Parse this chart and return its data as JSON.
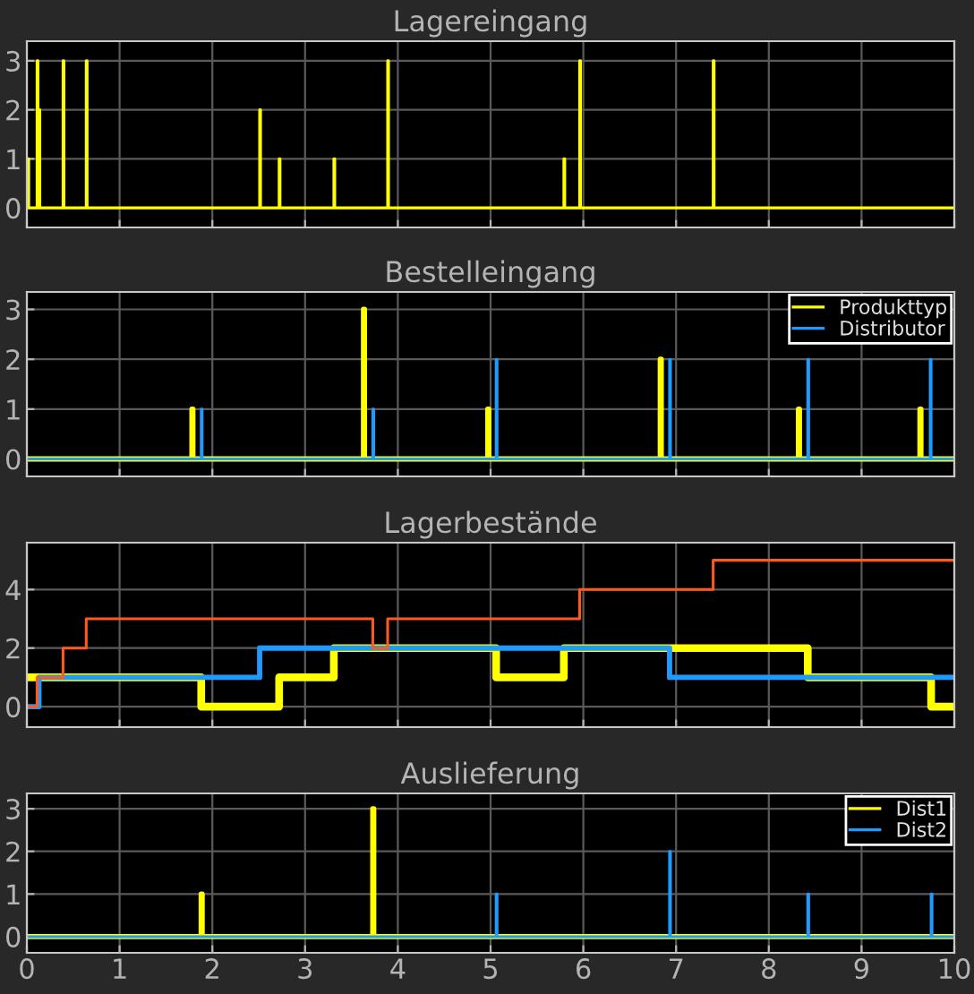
{
  "chart_data": [
    {
      "type": "step",
      "title": "Lagereingang",
      "xlim": [
        0,
        10
      ],
      "xticks": [
        0,
        1,
        2,
        3,
        4,
        5,
        6,
        7,
        8,
        9,
        10
      ],
      "ylim": [
        -0.4,
        3.4
      ],
      "yticks": [
        0,
        1,
        2,
        3
      ],
      "grid": true,
      "tick_labels": "y",
      "legend": false,
      "series": [
        {
          "color": "#ffff00",
          "x": [
            0,
            0.02,
            0.11,
            0.12,
            0.13,
            0.14,
            0.39,
            0.4,
            0.64,
            0.65,
            2.51,
            2.52,
            2.72,
            2.73,
            3.31,
            3.32,
            3.89,
            3.9,
            5.79,
            5.8,
            5.96,
            5.97,
            7.4,
            7.41,
            10
          ],
          "values": [
            1,
            0,
            3,
            0,
            2,
            0,
            3,
            0,
            3,
            0,
            2,
            0,
            1,
            0,
            1,
            0,
            3,
            0,
            1,
            0,
            3,
            0,
            3,
            0,
            0
          ]
        }
      ]
    },
    {
      "type": "step",
      "title": "Bestelleingang",
      "xlim": [
        0,
        10
      ],
      "xticks": [
        0,
        1,
        2,
        3,
        4,
        5,
        6,
        7,
        8,
        9,
        10
      ],
      "ylim": [
        -0.35,
        3.35
      ],
      "yticks": [
        0,
        1,
        2,
        3
      ],
      "grid": true,
      "tick_labels": "y",
      "legend": "top right",
      "series": [
        {
          "name": "Produkttyp",
          "color": "#ffff00",
          "x": [
            0,
            1.78,
            1.79,
            3.63,
            3.64,
            4.97,
            4.98,
            6.83,
            6.84,
            8.32,
            8.33,
            9.63,
            9.64,
            10
          ],
          "values": [
            0,
            1,
            0,
            3,
            0,
            1,
            0,
            2,
            0,
            1,
            0,
            1,
            0,
            0
          ]
        },
        {
          "name": "Distributor",
          "color": "#1e9bff",
          "x": [
            0,
            1.88,
            1.89,
            3.73,
            3.74,
            5.06,
            5.07,
            6.93,
            6.94,
            8.42,
            8.43,
            9.74,
            9.75,
            10
          ],
          "values": [
            0,
            1,
            0,
            1,
            0,
            2,
            0,
            2,
            0,
            2,
            0,
            2,
            0,
            0
          ]
        }
      ]
    },
    {
      "type": "step",
      "title": "Lagerbestände",
      "xlim": [
        0,
        10
      ],
      "xticks": [
        0,
        1,
        2,
        3,
        4,
        5,
        6,
        7,
        8,
        9,
        10
      ],
      "ylim": [
        -0.7,
        5.6
      ],
      "yticks": [
        0,
        2,
        4
      ],
      "grid": true,
      "tick_labels": "y",
      "legend": false,
      "series": [
        {
          "color": "#ffff00",
          "x": [
            0,
            1.88,
            2.72,
            3.31,
            5.06,
            5.79,
            8.42,
            9.75,
            10
          ],
          "values": [
            1,
            0,
            1,
            2,
            1,
            2,
            1,
            0,
            0
          ]
        },
        {
          "color": "#1e9bff",
          "x": [
            0,
            0.13,
            2.51,
            6.93,
            10
          ],
          "values": [
            0,
            1,
            2,
            1,
            1
          ]
        },
        {
          "color": "#ff5a1e",
          "x": [
            0,
            0.11,
            0.39,
            0.64,
            3.73,
            3.89,
            5.96,
            7.4,
            10
          ],
          "values": [
            0,
            1,
            2,
            3,
            2,
            3,
            4,
            5,
            5
          ]
        }
      ]
    },
    {
      "type": "step",
      "title": "Auslieferung",
      "xlim": [
        0,
        10
      ],
      "xticks": [
        0,
        1,
        2,
        3,
        4,
        5,
        6,
        7,
        8,
        9,
        10
      ],
      "ylim": [
        -0.38,
        3.36
      ],
      "yticks": [
        0,
        1,
        2,
        3
      ],
      "grid": true,
      "legend": "top right",
      "series": [
        {
          "name": "Dist1",
          "color": "#ffff00",
          "x": [
            0,
            1.88,
            1.89,
            3.73,
            3.74,
            10
          ],
          "values": [
            0,
            1,
            0,
            3,
            0,
            0
          ]
        },
        {
          "name": "Dist2",
          "color": "#1e9bff",
          "x": [
            0,
            5.06,
            5.07,
            6.93,
            6.94,
            8.42,
            8.43,
            9.75,
            9.76,
            10
          ],
          "values": [
            0,
            1,
            0,
            2,
            0,
            1,
            0,
            1,
            0,
            0
          ]
        }
      ]
    }
  ]
}
